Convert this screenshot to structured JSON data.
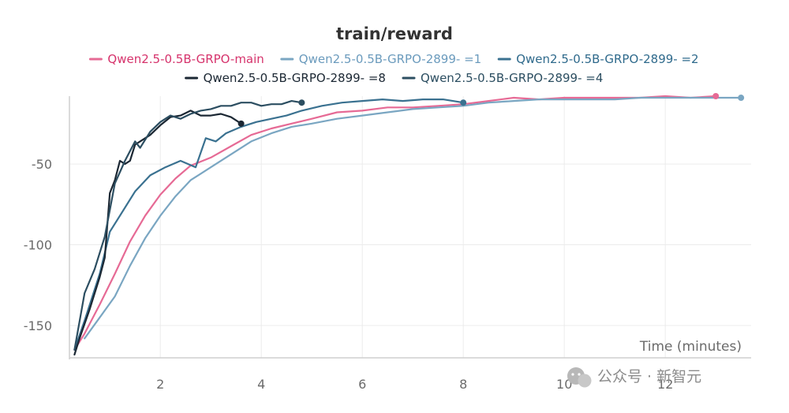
{
  "chart_data": {
    "type": "line",
    "title": "train/reward",
    "xlabel": "Time (minutes)",
    "ylabel": "",
    "xlim": [
      0.2,
      13.7
    ],
    "ylim": [
      -170,
      -8
    ],
    "xticks": [
      2,
      4,
      6,
      8,
      10,
      12
    ],
    "yticks": [
      -50,
      -100,
      -150
    ],
    "grid": true,
    "legend_position": "top",
    "series": [
      {
        "name": "Qwen2.5-0.5B-GRPO-main",
        "color": "#e66a95",
        "text_color": "#d6336c",
        "x": [
          0.3,
          0.5,
          0.8,
          1.1,
          1.4,
          1.7,
          2.0,
          2.3,
          2.6,
          3.0,
          3.4,
          3.8,
          4.2,
          4.6,
          5.0,
          5.5,
          6.0,
          6.5,
          7.0,
          7.5,
          8.0,
          8.5,
          9.0,
          9.5,
          10.0,
          10.5,
          11.0,
          11.5,
          12.0,
          12.5,
          13.0
        ],
        "y": [
          -165,
          -155,
          -137,
          -118,
          -98,
          -82,
          -69,
          -59,
          -51,
          -46,
          -39,
          -32,
          -28,
          -25,
          -22,
          -18,
          -17,
          -15,
          -15,
          -14,
          -13,
          -11,
          -9,
          -10,
          -9,
          -9,
          -9,
          -9,
          -8,
          -9,
          -8
        ]
      },
      {
        "name": "Qwen2.5-0.5B-GRPO-2899-  =1",
        "color": "#7aa6c2",
        "text_color": "#6b9bbd",
        "x": [
          0.5,
          0.8,
          1.1,
          1.4,
          1.7,
          2.0,
          2.3,
          2.6,
          3.0,
          3.4,
          3.8,
          4.2,
          4.6,
          5.0,
          5.5,
          6.0,
          6.5,
          7.0,
          7.5,
          8.0,
          8.5,
          9.0,
          9.5,
          10.0,
          10.5,
          11.0,
          11.5,
          12.0,
          12.5,
          13.0,
          13.5
        ],
        "y": [
          -158,
          -145,
          -132,
          -113,
          -96,
          -82,
          -70,
          -60,
          -52,
          -44,
          -36,
          -31,
          -27,
          -25,
          -22,
          -20,
          -18,
          -16,
          -15,
          -14,
          -12,
          -11,
          -10,
          -10,
          -10,
          -10,
          -9,
          -9,
          -9,
          -9,
          -9
        ]
      },
      {
        "name": "Qwen2.5-0.5B-GRPO-2899-  =2",
        "color": "#3a7190",
        "text_color": "#2f6a8c",
        "x": [
          0.3,
          0.5,
          0.8,
          1.0,
          1.2,
          1.5,
          1.8,
          2.1,
          2.4,
          2.7,
          2.9,
          3.1,
          3.3,
          3.6,
          3.9,
          4.2,
          4.5,
          4.8,
          5.2,
          5.6,
          6.0,
          6.4,
          6.8,
          7.2,
          7.6,
          8.0
        ],
        "y": [
          -165,
          -147,
          -118,
          -92,
          -82,
          -67,
          -57,
          -52,
          -48,
          -52,
          -34,
          -36,
          -31,
          -27,
          -24,
          -22,
          -20,
          -17,
          -14,
          -12,
          -11,
          -10,
          -11,
          -10,
          -10,
          -12
        ]
      },
      {
        "name": "Qwen2.5-0.5B-GRPO-2899-  =8",
        "color": "#1b2733",
        "text_color": "#1b2733",
        "x": [
          0.3,
          0.4,
          0.6,
          0.8,
          0.9,
          1.0,
          1.1,
          1.2,
          1.3,
          1.4,
          1.5,
          1.6,
          1.8,
          2.0,
          2.2,
          2.4,
          2.6,
          2.8,
          3.0,
          3.2,
          3.4,
          3.6
        ],
        "y": [
          -168,
          -158,
          -140,
          -120,
          -108,
          -68,
          -60,
          -48,
          -50,
          -48,
          -38,
          -36,
          -32,
          -26,
          -21,
          -20,
          -17,
          -20,
          -20,
          -19,
          -21,
          -25
        ]
      },
      {
        "name": "Qwen2.5-0.5B-GRPO-2899-  =4",
        "color": "#2c4e61",
        "text_color": "#2c4e61",
        "x": [
          0.3,
          0.5,
          0.7,
          0.9,
          1.1,
          1.3,
          1.5,
          1.6,
          1.8,
          2.0,
          2.2,
          2.4,
          2.6,
          2.8,
          3.0,
          3.2,
          3.4,
          3.6,
          3.8,
          4.0,
          4.2,
          4.4,
          4.6,
          4.8
        ],
        "y": [
          -165,
          -130,
          -115,
          -95,
          -62,
          -48,
          -36,
          -40,
          -30,
          -24,
          -20,
          -22,
          -19,
          -17,
          -16,
          -14,
          -14,
          -12,
          -12,
          -14,
          -13,
          -13,
          -11,
          -12
        ]
      }
    ],
    "end_markers": [
      {
        "series": 0,
        "x": 13.0,
        "y": -8
      },
      {
        "series": 1,
        "x": 13.5,
        "y": -9
      },
      {
        "series": 2,
        "x": 8.0,
        "y": -12
      },
      {
        "series": 3,
        "x": 3.6,
        "y": -25
      },
      {
        "series": 4,
        "x": 4.8,
        "y": -12
      }
    ]
  },
  "watermark": {
    "text": "公众号 · 新智元",
    "icon": "wechat-icon"
  }
}
